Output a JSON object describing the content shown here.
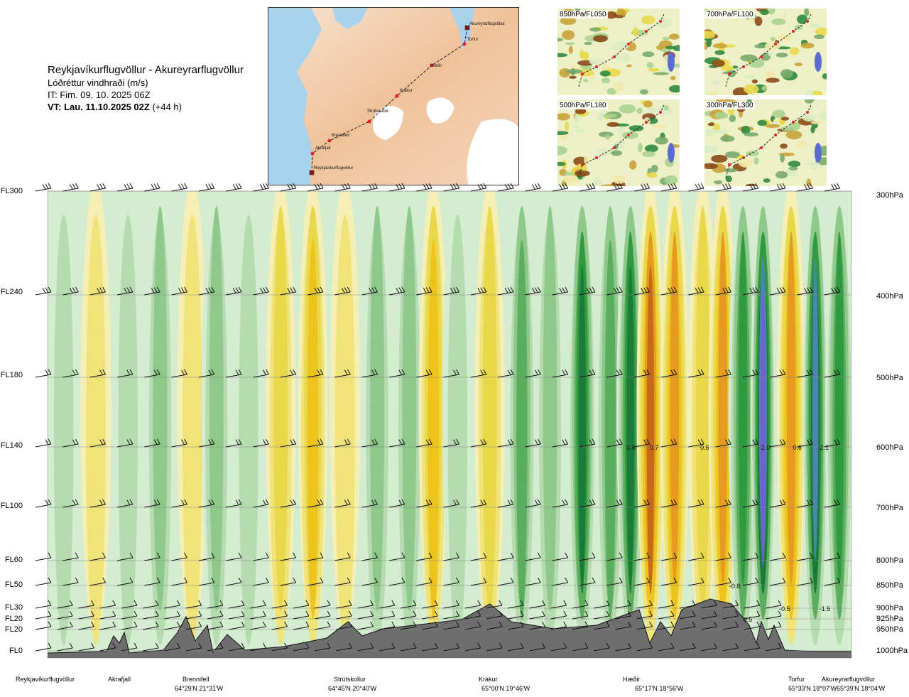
{
  "header": {
    "title": "Reykjavíkurflugvöllur - Akureyrarflugvöllur",
    "subtitle": "Lóðréttur vindhraði (m/s)",
    "it": "IT: Fim. 09. 10. 2025 06Z",
    "vt_bold": "VT: Lau. 11.10.2025 02Z",
    "vt_lead": "(+44 h)"
  },
  "map": {
    "route_labels": [
      "Akureyrarflugvöllur",
      "Torfur",
      "Hæðir",
      "Krákur",
      "Strútskollur",
      "Brennifell",
      "Akrafjall",
      "Reykjavíkurflugvöllur"
    ],
    "colors": {
      "sea": "#a9d2ec",
      "land": "#f0c9a6",
      "glacier": "#ffffff",
      "route": "#222222",
      "point": "#e0202a"
    }
  },
  "thumbnails": [
    {
      "label": "850hPa/FL050"
    },
    {
      "label": "700hPa/FL100"
    },
    {
      "label": "500hPa/FL180"
    },
    {
      "label": "300hPa/FL300"
    }
  ],
  "chart_data": {
    "type": "heatmap",
    "variable": "Lóðréttur vindhraði (m/s)",
    "x_locations": [
      "Reykjavíkurflugvöllur",
      "Akrafjall",
      "Brennifell",
      "Strútskollur",
      "Krákur",
      "Hæðir",
      "Torfur",
      "Akureyrarflugvöllur"
    ],
    "x_coordinates": [
      "",
      "",
      "64°29'N 21°31'W",
      "64°45'N 20°40'W",
      "65°00'N 19°46'W",
      "65°17'N 18°56'W",
      "65°33'N 18°07'W",
      "65°39'N 18°04'W"
    ],
    "y_levels_fl": [
      "FL300",
      "FL240",
      "FL180",
      "FL140",
      "FL100",
      "FL60",
      "FL50",
      "FL30",
      "FL20",
      "FL20",
      "FL0"
    ],
    "y_levels_hpa": [
      "300hPa",
      "400hPa",
      "500hPa",
      "600hPa",
      "700hPa",
      "800hPa",
      "850hPa",
      "900hPa",
      "925hPa",
      "950hPa",
      "1000hPa"
    ],
    "hpa_values": [
      300,
      400,
      500,
      600,
      700,
      800,
      850,
      900,
      925,
      950,
      1000
    ],
    "annotations": [
      {
        "text": "0.6",
        "level_hpa": 600,
        "along": 0.72
      },
      {
        "text": "0.7",
        "level_hpa": 600,
        "along": 0.749
      },
      {
        "text": "0.6",
        "level_hpa": 600,
        "along": 0.812
      },
      {
        "text": "-2.0",
        "level_hpa": 600,
        "along": 0.885
      },
      {
        "text": "0.6",
        "level_hpa": 600,
        "along": 0.927
      },
      {
        "text": "-2.1",
        "level_hpa": 600,
        "along": 0.958
      },
      {
        "text": "-0.8",
        "level_hpa": 850,
        "along": 0.848
      },
      {
        "text": "-0.5",
        "level_hpa": 900,
        "along": 0.91
      },
      {
        "text": "-1.5",
        "level_hpa": 900,
        "along": 0.96
      },
      {
        "text": "-0.5",
        "level_hpa": 925,
        "along": 0.863
      }
    ],
    "bands": [
      {
        "along": 0.02,
        "w": -0.2
      },
      {
        "along": 0.06,
        "w": 0.2
      },
      {
        "along": 0.1,
        "w": -0.3
      },
      {
        "along": 0.14,
        "w": -0.4
      },
      {
        "along": 0.18,
        "w": 0.3
      },
      {
        "along": 0.21,
        "w": -0.5
      },
      {
        "along": 0.25,
        "w": -0.3
      },
      {
        "along": 0.29,
        "w": 0.5
      },
      {
        "along": 0.33,
        "w": 0.6
      },
      {
        "along": 0.37,
        "w": 0.2
      },
      {
        "along": 0.41,
        "w": -0.4
      },
      {
        "along": 0.45,
        "w": -0.5
      },
      {
        "along": 0.48,
        "w": 0.7
      },
      {
        "along": 0.51,
        "w": -0.3
      },
      {
        "along": 0.55,
        "w": 0.4
      },
      {
        "along": 0.59,
        "w": -0.7
      },
      {
        "along": 0.625,
        "w": -0.5
      },
      {
        "along": 0.665,
        "w": -1.2
      },
      {
        "along": 0.7,
        "w": -0.6
      },
      {
        "along": 0.725,
        "w": -1.3
      },
      {
        "along": 0.75,
        "w": 1.3
      },
      {
        "along": 0.78,
        "w": 0.9
      },
      {
        "along": 0.815,
        "w": 0.5
      },
      {
        "along": 0.84,
        "w": 0.9
      },
      {
        "along": 0.865,
        "w": -0.8
      },
      {
        "along": 0.89,
        "w": -2.3
      },
      {
        "along": 0.925,
        "w": 1.0
      },
      {
        "along": 0.955,
        "w": -2.0
      },
      {
        "along": 0.985,
        "w": -1.0
      }
    ],
    "colorscale": [
      {
        "min": -99,
        "max": -2.0,
        "color": "#7060d0"
      },
      {
        "min": -2.0,
        "max": -1.5,
        "color": "#4a86b0"
      },
      {
        "min": -1.5,
        "max": -1.0,
        "color": "#1a7a3a"
      },
      {
        "min": -1.0,
        "max": -0.75,
        "color": "#2f9a3f"
      },
      {
        "min": -0.75,
        "max": -0.5,
        "color": "#5aae5e"
      },
      {
        "min": -0.5,
        "max": -0.3,
        "color": "#8ec88a"
      },
      {
        "min": -0.3,
        "max": -0.15,
        "color": "#b6dbb0"
      },
      {
        "min": -0.15,
        "max": -0.05,
        "color": "#d4ecd0"
      },
      {
        "min": -0.05,
        "max": 0.05,
        "color": "#f7f9ec"
      },
      {
        "min": 0.05,
        "max": 0.15,
        "color": "#f5efb6"
      },
      {
        "min": 0.15,
        "max": 0.3,
        "color": "#efe37a"
      },
      {
        "min": 0.3,
        "max": 0.5,
        "color": "#e8d84a"
      },
      {
        "min": 0.5,
        "max": 0.75,
        "color": "#eec31c"
      },
      {
        "min": 0.75,
        "max": 1.0,
        "color": "#e69a20"
      },
      {
        "min": 1.0,
        "max": 1.5,
        "color": "#c56a16"
      },
      {
        "min": 1.5,
        "max": 99,
        "color": "#8a3a14"
      }
    ]
  }
}
